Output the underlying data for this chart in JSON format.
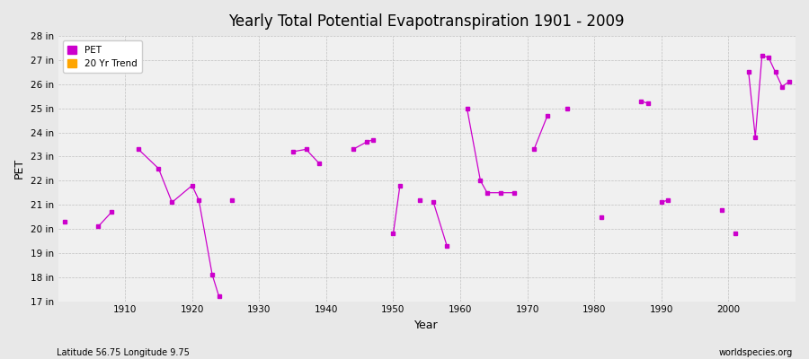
{
  "title": "Yearly Total Potential Evapotranspiration 1901 - 2009",
  "xlabel": "Year",
  "ylabel": "PET",
  "footer_left": "Latitude 56.75 Longitude 9.75",
  "footer_right": "worldspecies.org",
  "pet_color": "#CC00CC",
  "trend_color": "#FFA500",
  "background_color": "#E8E8E8",
  "plot_bg_color": "#F0F0F0",
  "ylim": [
    17,
    28
  ],
  "yticks": [
    17,
    18,
    19,
    20,
    21,
    22,
    23,
    24,
    25,
    26,
    27,
    28
  ],
  "ytick_labels": [
    "17 in",
    "18 in",
    "19 in",
    "20 in",
    "21 in",
    "22 in",
    "23 in",
    "24 in",
    "25 in",
    "26 in",
    "27 in",
    "28 in"
  ],
  "xlim": [
    1900,
    2010
  ],
  "years": [
    1901,
    1906,
    1908,
    1912,
    1915,
    1917,
    1920,
    1921,
    1923,
    1924,
    1926,
    1935,
    1937,
    1939,
    1944,
    1946,
    1947,
    1950,
    1951,
    1954,
    1956,
    1958,
    1961,
    1963,
    1964,
    1966,
    1968,
    1971,
    1973,
    1976,
    1981,
    1987,
    1988,
    1990,
    1991,
    1999,
    2001,
    2003,
    2004,
    2005,
    2006,
    2007,
    2008,
    2009
  ],
  "pet_values": [
    20.3,
    20.1,
    20.7,
    23.3,
    22.5,
    21.1,
    21.8,
    21.2,
    18.1,
    17.2,
    21.2,
    23.2,
    23.3,
    22.7,
    23.3,
    23.6,
    23.7,
    19.8,
    21.8,
    21.2,
    21.1,
    19.3,
    25.0,
    22.0,
    21.5,
    21.5,
    21.5,
    23.3,
    24.7,
    25.0,
    20.5,
    25.3,
    25.2,
    21.1,
    21.2,
    20.8,
    19.8,
    26.5,
    23.8,
    27.2,
    27.1,
    26.5,
    25.9,
    26.1
  ],
  "segments": [
    [
      1901
    ],
    [
      1906,
      1908
    ],
    [
      1912,
      1915,
      1917,
      1920,
      1921,
      1923,
      1924
    ],
    [
      1926
    ],
    [
      1935,
      1937,
      1939
    ],
    [
      1944,
      1946,
      1947
    ],
    [
      1950,
      1951
    ],
    [
      1954
    ],
    [
      1956,
      1958
    ],
    [
      1961,
      1963,
      1964,
      1966,
      1968
    ],
    [
      1971,
      1973
    ],
    [
      1976
    ],
    [
      1981
    ],
    [
      1987,
      1988
    ],
    [
      1990,
      1991
    ],
    [
      1999
    ],
    [
      2001
    ],
    [
      2003,
      2004,
      2005,
      2006,
      2007,
      2008,
      2009
    ]
  ]
}
